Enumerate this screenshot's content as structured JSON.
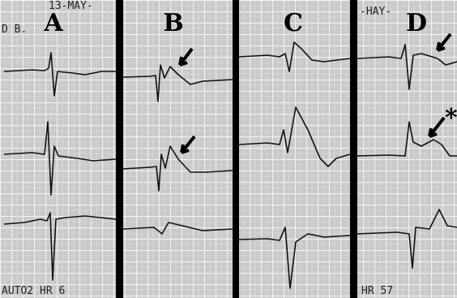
{
  "panels": [
    {
      "label": "A"
    },
    {
      "label": "B"
    },
    {
      "label": "C"
    },
    {
      "label": "D"
    }
  ],
  "annotations": {
    "date_left": "13-MAY-",
    "lead_left": "D B.",
    "footer_left": "AUTO2 HR 6",
    "date_right": "-HAY-",
    "footer_right": "HR 57",
    "asterisk": "*"
  }
}
